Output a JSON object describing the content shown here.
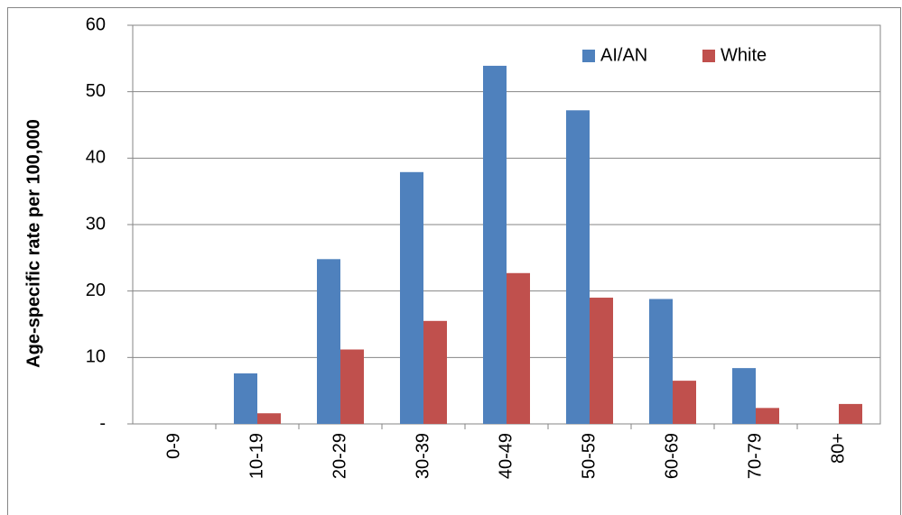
{
  "chart_data": {
    "type": "bar",
    "y_label": "Age-specific rate per 100,000",
    "categories": [
      "0-9",
      "10-19",
      "20-29",
      "30-39",
      "40-49",
      "50-59",
      "60-69",
      "70-79",
      "80+"
    ],
    "series": [
      {
        "name": "AI/AN",
        "color": "#4f81bd",
        "values": [
          0,
          7.6,
          24.8,
          37.9,
          53.9,
          47.2,
          18.8,
          8.4,
          0
        ]
      },
      {
        "name": "White",
        "color": "#c0504d",
        "values": [
          0,
          1.6,
          11.2,
          15.5,
          22.7,
          19.0,
          6.5,
          2.4,
          3.0
        ]
      }
    ],
    "ylim": [
      0,
      60
    ],
    "yticks": [
      {
        "value": 0,
        "label": "-"
      },
      10,
      20,
      30,
      40,
      50,
      60
    ],
    "grid": true,
    "legend": "top-right"
  }
}
